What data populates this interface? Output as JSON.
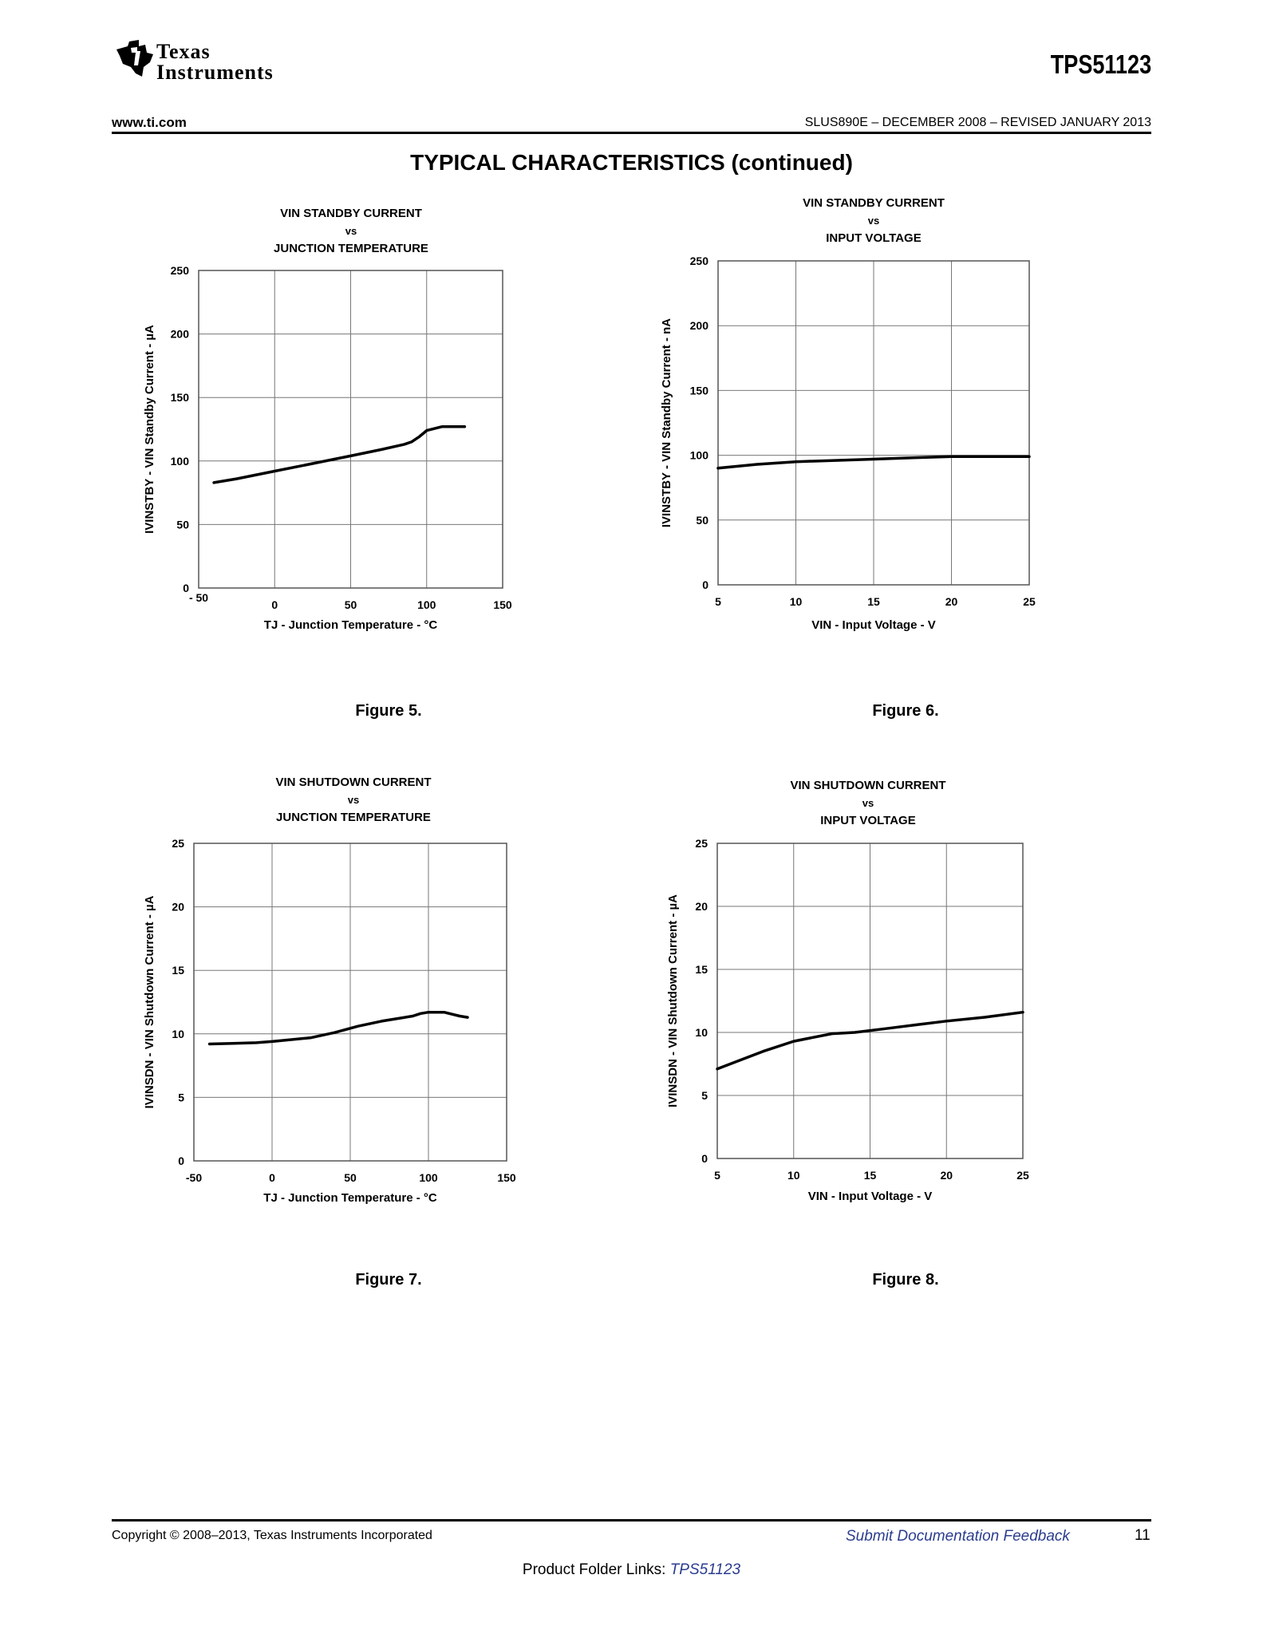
{
  "header": {
    "logo_line1": "Texas",
    "logo_line2": "Instruments",
    "part_number": "TPS51123",
    "site": "www.ti.com",
    "doc_id": "SLUS890E – DECEMBER 2008 – REVISED JANUARY 2013",
    "section_title": "TYPICAL CHARACTERISTICS (continued)"
  },
  "figures": {
    "fig5_caption": "Figure 5.",
    "fig6_caption": "Figure 6.",
    "fig7_caption": "Figure 7.",
    "fig8_caption": "Figure 8."
  },
  "footer": {
    "copyright": "Copyright © 2008–2013, Texas Instruments Incorporated",
    "feedback": "Submit Documentation Feedback",
    "page": "11",
    "folder_label": "Product Folder Links: ",
    "folder_link": "TPS51123"
  },
  "chart_data": [
    {
      "type": "line",
      "title_lines": [
        "VIN STANDBY CURRENT",
        "vs",
        "JUNCTION TEMPERATURE"
      ],
      "xlabel": "TJ - Junction Temperature - °C",
      "ylabel": "IVINSTBY - VIN Standby Current - µA",
      "xlim": [
        -50,
        150
      ],
      "ylim": [
        0,
        250
      ],
      "x_ticks": [
        -50,
        0,
        50,
        100,
        150
      ],
      "x_tick_labels": [
        "- 50",
        "0",
        "50",
        "100",
        "150"
      ],
      "y_ticks": [
        0,
        50,
        100,
        150,
        200,
        250
      ],
      "grid": true,
      "series": [
        {
          "x": [
            -40,
            -25,
            0,
            25,
            50,
            70,
            85,
            90,
            95,
            100,
            110,
            125
          ],
          "y": [
            83,
            86,
            92,
            98,
            104,
            109,
            113,
            115,
            119,
            124,
            127,
            127
          ]
        }
      ]
    },
    {
      "type": "line",
      "title_lines": [
        "VIN STANDBY CURRENT",
        "vs",
        "INPUT VOLTAGE"
      ],
      "xlabel": "VIN - Input Voltage - V",
      "ylabel": "IVINSTBY - VIN Standby Current - nA",
      "xlim": [
        5,
        25
      ],
      "ylim": [
        0,
        250
      ],
      "x_ticks": [
        5,
        10,
        15,
        20,
        25
      ],
      "x_tick_labels": [
        "5",
        "10",
        "15",
        "20",
        "25"
      ],
      "y_ticks": [
        0,
        50,
        100,
        150,
        200,
        250
      ],
      "grid": true,
      "series": [
        {
          "x": [
            5,
            7.5,
            10,
            12.5,
            15,
            17.5,
            20,
            22.5,
            25
          ],
          "y": [
            90,
            93,
            95,
            96,
            97,
            98,
            99,
            99,
            99
          ]
        }
      ]
    },
    {
      "type": "line",
      "title_lines": [
        "VIN SHUTDOWN CURRENT",
        "vs",
        "JUNCTION TEMPERATURE"
      ],
      "xlabel": "TJ - Junction Temperature - °C",
      "ylabel": "IVINSDN - VIN Shutdown Current - µA",
      "xlim": [
        -50,
        150
      ],
      "ylim": [
        0,
        25
      ],
      "x_ticks": [
        -50,
        0,
        50,
        100,
        150
      ],
      "x_tick_labels": [
        "-50",
        "0",
        "50",
        "100",
        "150"
      ],
      "y_ticks": [
        0,
        5,
        10,
        15,
        20,
        25
      ],
      "grid": true,
      "series": [
        {
          "x": [
            -40,
            -25,
            -10,
            0,
            25,
            40,
            55,
            70,
            85,
            90,
            95,
            100,
            110,
            120,
            125
          ],
          "y": [
            9.2,
            9.25,
            9.3,
            9.4,
            9.7,
            10.1,
            10.6,
            11.0,
            11.3,
            11.4,
            11.6,
            11.7,
            11.7,
            11.4,
            11.3
          ]
        }
      ]
    },
    {
      "type": "line",
      "title_lines": [
        "VIN SHUTDOWN CURRENT",
        "vs",
        "INPUT VOLTAGE"
      ],
      "xlabel": "VIN - Input Voltage - V",
      "ylabel": "IVINSDN - VIN Shutdown Current - µA",
      "xlim": [
        5,
        25
      ],
      "ylim": [
        0,
        25
      ],
      "x_ticks": [
        5,
        10,
        15,
        20,
        25
      ],
      "x_tick_labels": [
        "5",
        "10",
        "15",
        "20",
        "25"
      ],
      "y_ticks": [
        0,
        5,
        10,
        15,
        20,
        25
      ],
      "grid": true,
      "series": [
        {
          "x": [
            5,
            6.5,
            8,
            10,
            12.5,
            14,
            16,
            18,
            20,
            22.5,
            25
          ],
          "y": [
            7.1,
            7.8,
            8.5,
            9.3,
            9.9,
            10.0,
            10.3,
            10.6,
            10.9,
            11.2,
            11.6
          ]
        }
      ]
    }
  ]
}
